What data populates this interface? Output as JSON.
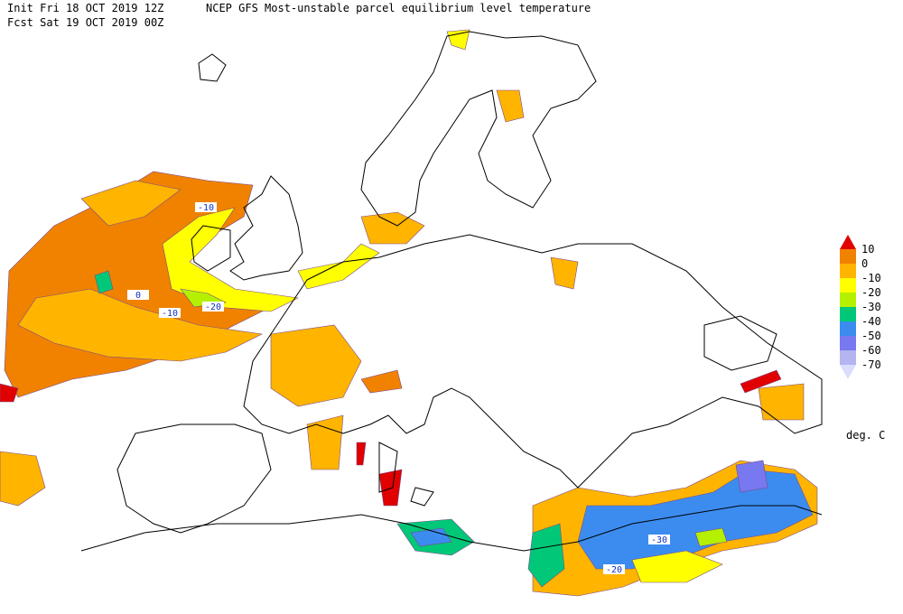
{
  "header": {
    "init": "Init  Fri 18 OCT 2019 12Z",
    "title": "NCEP GFS Most-unstable parcel equilibrium level temperature",
    "forecast": "Fcst Sat 19 OCT 2019 00Z"
  },
  "legend": {
    "levels": [
      10,
      0,
      -10,
      -20,
      -30,
      -40,
      -50,
      -60,
      -70
    ],
    "colors": [
      "#e00000",
      "#f08200",
      "#ffb400",
      "#ffff00",
      "#b4f000",
      "#00c878",
      "#3c8cf0",
      "#7878f0",
      "#b4b4f0",
      "#dcdcff"
    ],
    "unit": "deg. C"
  },
  "contour_labels": [
    "-10",
    "0",
    "-10",
    "-20",
    "-30",
    "-20"
  ]
}
